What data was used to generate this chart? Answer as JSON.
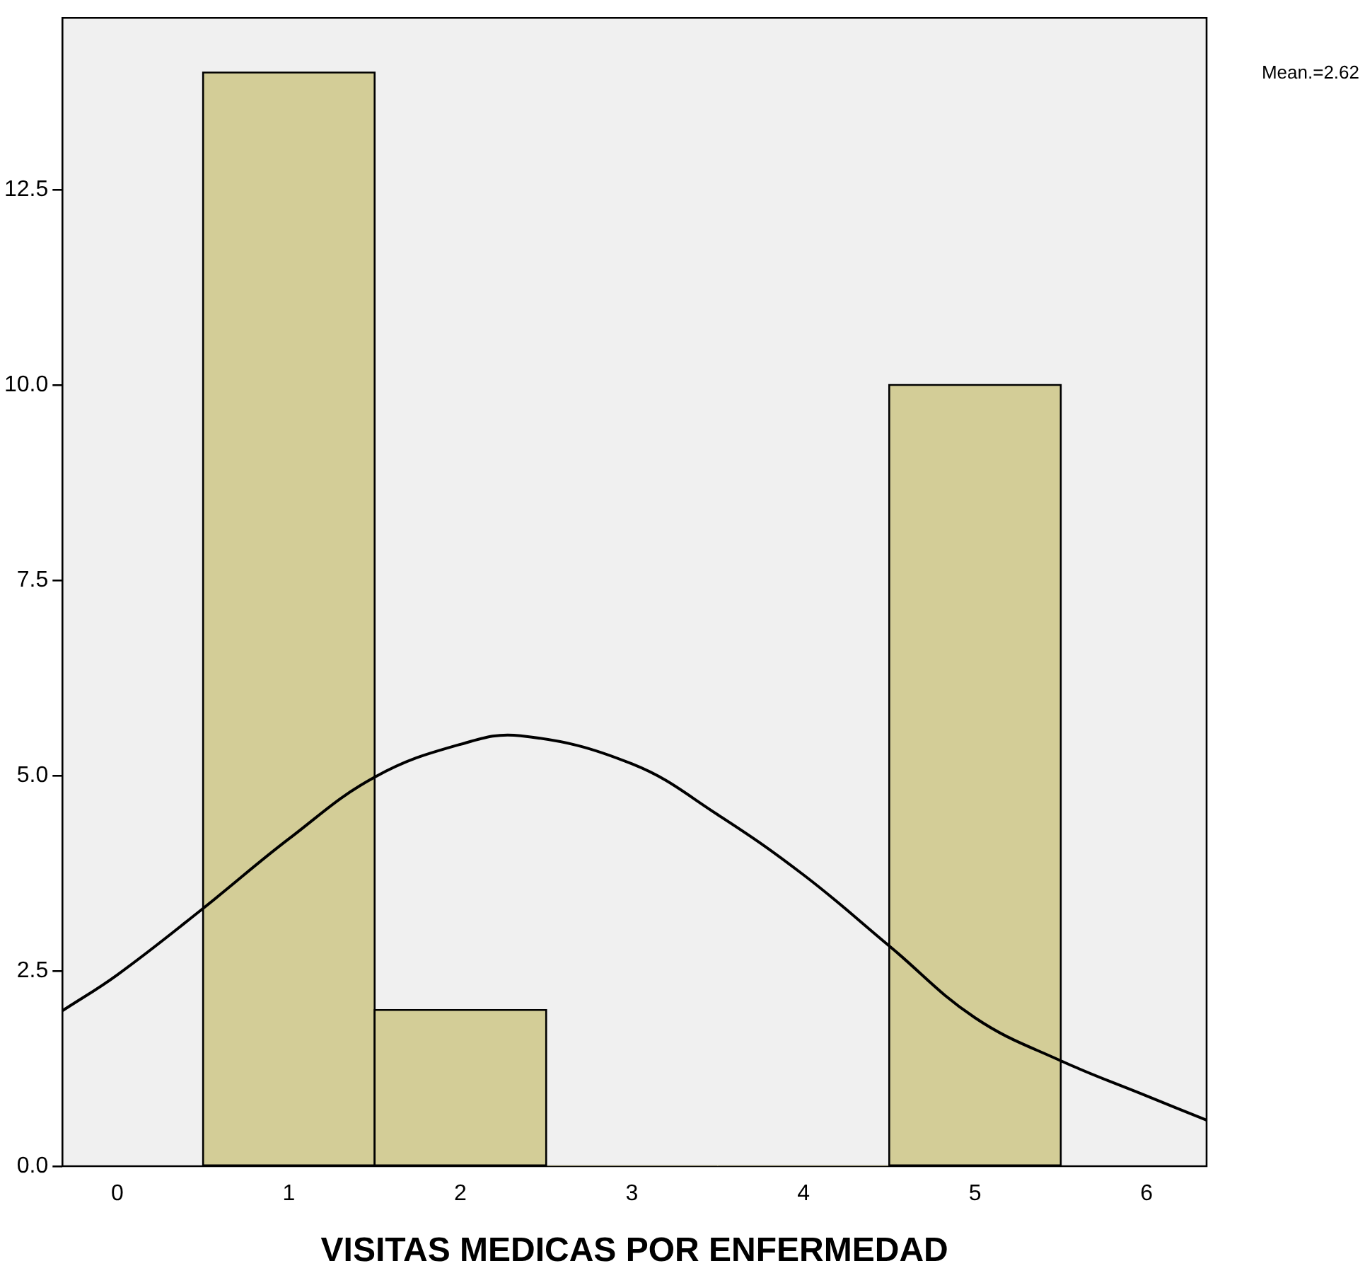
{
  "chart_data": {
    "type": "histogram",
    "xlabel": "VISITAS MEDICAS POR ENFERMEDAD",
    "annotations": [
      "Mean.=2.62"
    ],
    "bins": [
      0.5,
      1.5,
      2.5,
      3.5,
      4.5,
      5.5
    ],
    "values": [
      14,
      2,
      0,
      0,
      10
    ],
    "color": "#d3cd97",
    "series": [
      {
        "type": "line",
        "color": "#000000",
        "x": [
          -0.32,
          0,
          0.5,
          1,
          1.5,
          2,
          2.35,
          3,
          3.5,
          4,
          4.5,
          5,
          5.5,
          6,
          6.35
        ],
        "values": [
          1.99,
          2.45,
          3.3,
          4.19,
          4.98,
          5.4,
          5.51,
          5.15,
          4.5,
          3.73,
          2.82,
          1.9,
          1.35,
          0.9,
          0.59
        ]
      }
    ],
    "xlim": [
      -0.32,
      6.35
    ],
    "xticks": [
      0,
      1,
      2,
      3,
      4,
      5,
      6
    ],
    "ylim": [
      0,
      14.7
    ],
    "yticks": [
      {
        "value": 0,
        "label": "0.0"
      },
      2.5,
      {
        "value": 5,
        "label": "5.0"
      },
      7.5,
      {
        "value": 10,
        "label": "10.0"
      },
      12.5
    ],
    "grid": false,
    "legend": false
  }
}
